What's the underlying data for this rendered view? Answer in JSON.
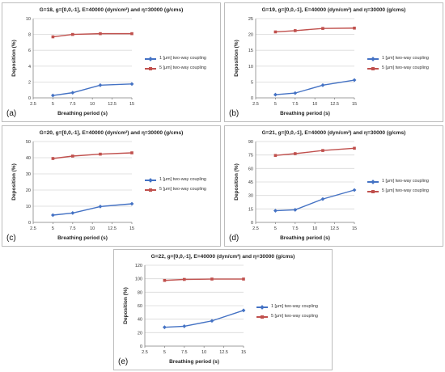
{
  "legend": {
    "series_1": "1 [μm] two-way coupling",
    "series_2": "5 [μm] two-way coupling"
  },
  "chart_data": [
    {
      "label": "(a)",
      "type": "line",
      "title": "G=18, g=[0,0,-1],  E=40000 (dyn/cm²) and η=30000 (g/cms)",
      "xlabel": "Breathing period (s)",
      "ylabel": "Deposition (%)",
      "xlim": [
        2.5,
        15
      ],
      "xticks": [
        "2.5",
        "5",
        "7.5",
        "10",
        "12.5",
        "15"
      ],
      "ylim": [
        0,
        10
      ],
      "yticks": [
        "0",
        "2",
        "4",
        "6",
        "8",
        "10"
      ],
      "x": [
        5,
        7.5,
        11,
        15
      ],
      "series": [
        {
          "name": "1 [μm] two-way coupling",
          "color": "#4472C4",
          "marker": "diamond",
          "values": [
            0.3,
            0.65,
            1.6,
            1.75
          ]
        },
        {
          "name": "5 [μm] two-way coupling",
          "color": "#C0504D",
          "marker": "square",
          "values": [
            7.7,
            8.0,
            8.1,
            8.1
          ]
        }
      ]
    },
    {
      "label": "(b)",
      "type": "line",
      "title": "G=19, g=[0,0,-1],  E=40000 (dyn/cm²) and η=30000 (g/cms)",
      "xlabel": "Breathing period (s)",
      "ylabel": "Deposition (%)",
      "xlim": [
        2.5,
        15
      ],
      "xticks": [
        "2.5",
        "5",
        "7.5",
        "10",
        "12.5",
        "15"
      ],
      "ylim": [
        0,
        25
      ],
      "yticks": [
        "0",
        "5",
        "10",
        "15",
        "20",
        "25"
      ],
      "x": [
        5,
        7.5,
        11,
        15
      ],
      "series": [
        {
          "name": "1 [μm] two-way coupling",
          "color": "#4472C4",
          "marker": "diamond",
          "values": [
            1.0,
            1.5,
            4.0,
            5.6
          ]
        },
        {
          "name": "5 [μm] two-way coupling",
          "color": "#C0504D",
          "marker": "square",
          "values": [
            20.8,
            21.2,
            21.9,
            22.0
          ]
        }
      ]
    },
    {
      "label": "(c)",
      "type": "line",
      "title": "G=20, g=[0,0,-1],  E=40000 (dyn/cm²) and η=30000 (g/cms)",
      "xlabel": "Breathing period (s)",
      "ylabel": "Deposition (%)",
      "xlim": [
        2.5,
        15
      ],
      "xticks": [
        "2.5",
        "5",
        "7.5",
        "10",
        "12.5",
        "15"
      ],
      "ylim": [
        0,
        50
      ],
      "yticks": [
        "0",
        "10",
        "20",
        "30",
        "40",
        "50"
      ],
      "x": [
        5,
        7.5,
        11,
        15
      ],
      "series": [
        {
          "name": "1 [μm] two-way coupling",
          "color": "#4472C4",
          "marker": "diamond",
          "values": [
            4.5,
            5.8,
            9.8,
            11.5
          ]
        },
        {
          "name": "5 [μm] two-way coupling",
          "color": "#C0504D",
          "marker": "square",
          "values": [
            39.5,
            41.0,
            42.2,
            43.0
          ]
        }
      ]
    },
    {
      "label": "(d)",
      "type": "line",
      "title": "G=21, g=[0,0,-1],  E=40000 (dyn/cm²) and η=30000 (g/cms)",
      "xlabel": "Breathing period (s)",
      "ylabel": "Deposition (%)",
      "xlim": [
        2.5,
        15
      ],
      "xticks": [
        "2.5",
        "5",
        "7.5",
        "10",
        "12.5",
        "15"
      ],
      "ylim": [
        0,
        90
      ],
      "yticks": [
        "0",
        "15",
        "30",
        "45",
        "60",
        "75",
        "90"
      ],
      "x": [
        5,
        7.5,
        11,
        15
      ],
      "series": [
        {
          "name": "1 [μm] two-way coupling",
          "color": "#4472C4",
          "marker": "diamond",
          "values": [
            13.0,
            14.0,
            26.0,
            36.0
          ]
        },
        {
          "name": "5 [μm] two-way coupling",
          "color": "#C0504D",
          "marker": "square",
          "values": [
            74.5,
            76.5,
            80.0,
            82.5
          ]
        }
      ]
    },
    {
      "label": "(e)",
      "type": "line",
      "title": "G=22, g=[0,0,-1],  E=40000 (dyn/cm²) and η=30000 (g/cms)",
      "xlabel": "Breathing period (s)",
      "ylabel": "Deposition (%)",
      "xlim": [
        2.5,
        15
      ],
      "xticks": [
        "2.5",
        "5",
        "7.5",
        "10",
        "12.5",
        "15"
      ],
      "ylim": [
        0,
        120
      ],
      "yticks": [
        "0",
        "20",
        "40",
        "60",
        "80",
        "100",
        "120"
      ],
      "x": [
        5,
        7.5,
        11,
        15
      ],
      "series": [
        {
          "name": "1 [μm] two-way coupling",
          "color": "#4472C4",
          "marker": "diamond",
          "values": [
            28.0,
            29.5,
            37.5,
            53.0
          ]
        },
        {
          "name": "5 [μm] two-way coupling",
          "color": "#C0504D",
          "marker": "square",
          "values": [
            97.5,
            99.0,
            99.5,
            99.5
          ]
        }
      ]
    }
  ]
}
